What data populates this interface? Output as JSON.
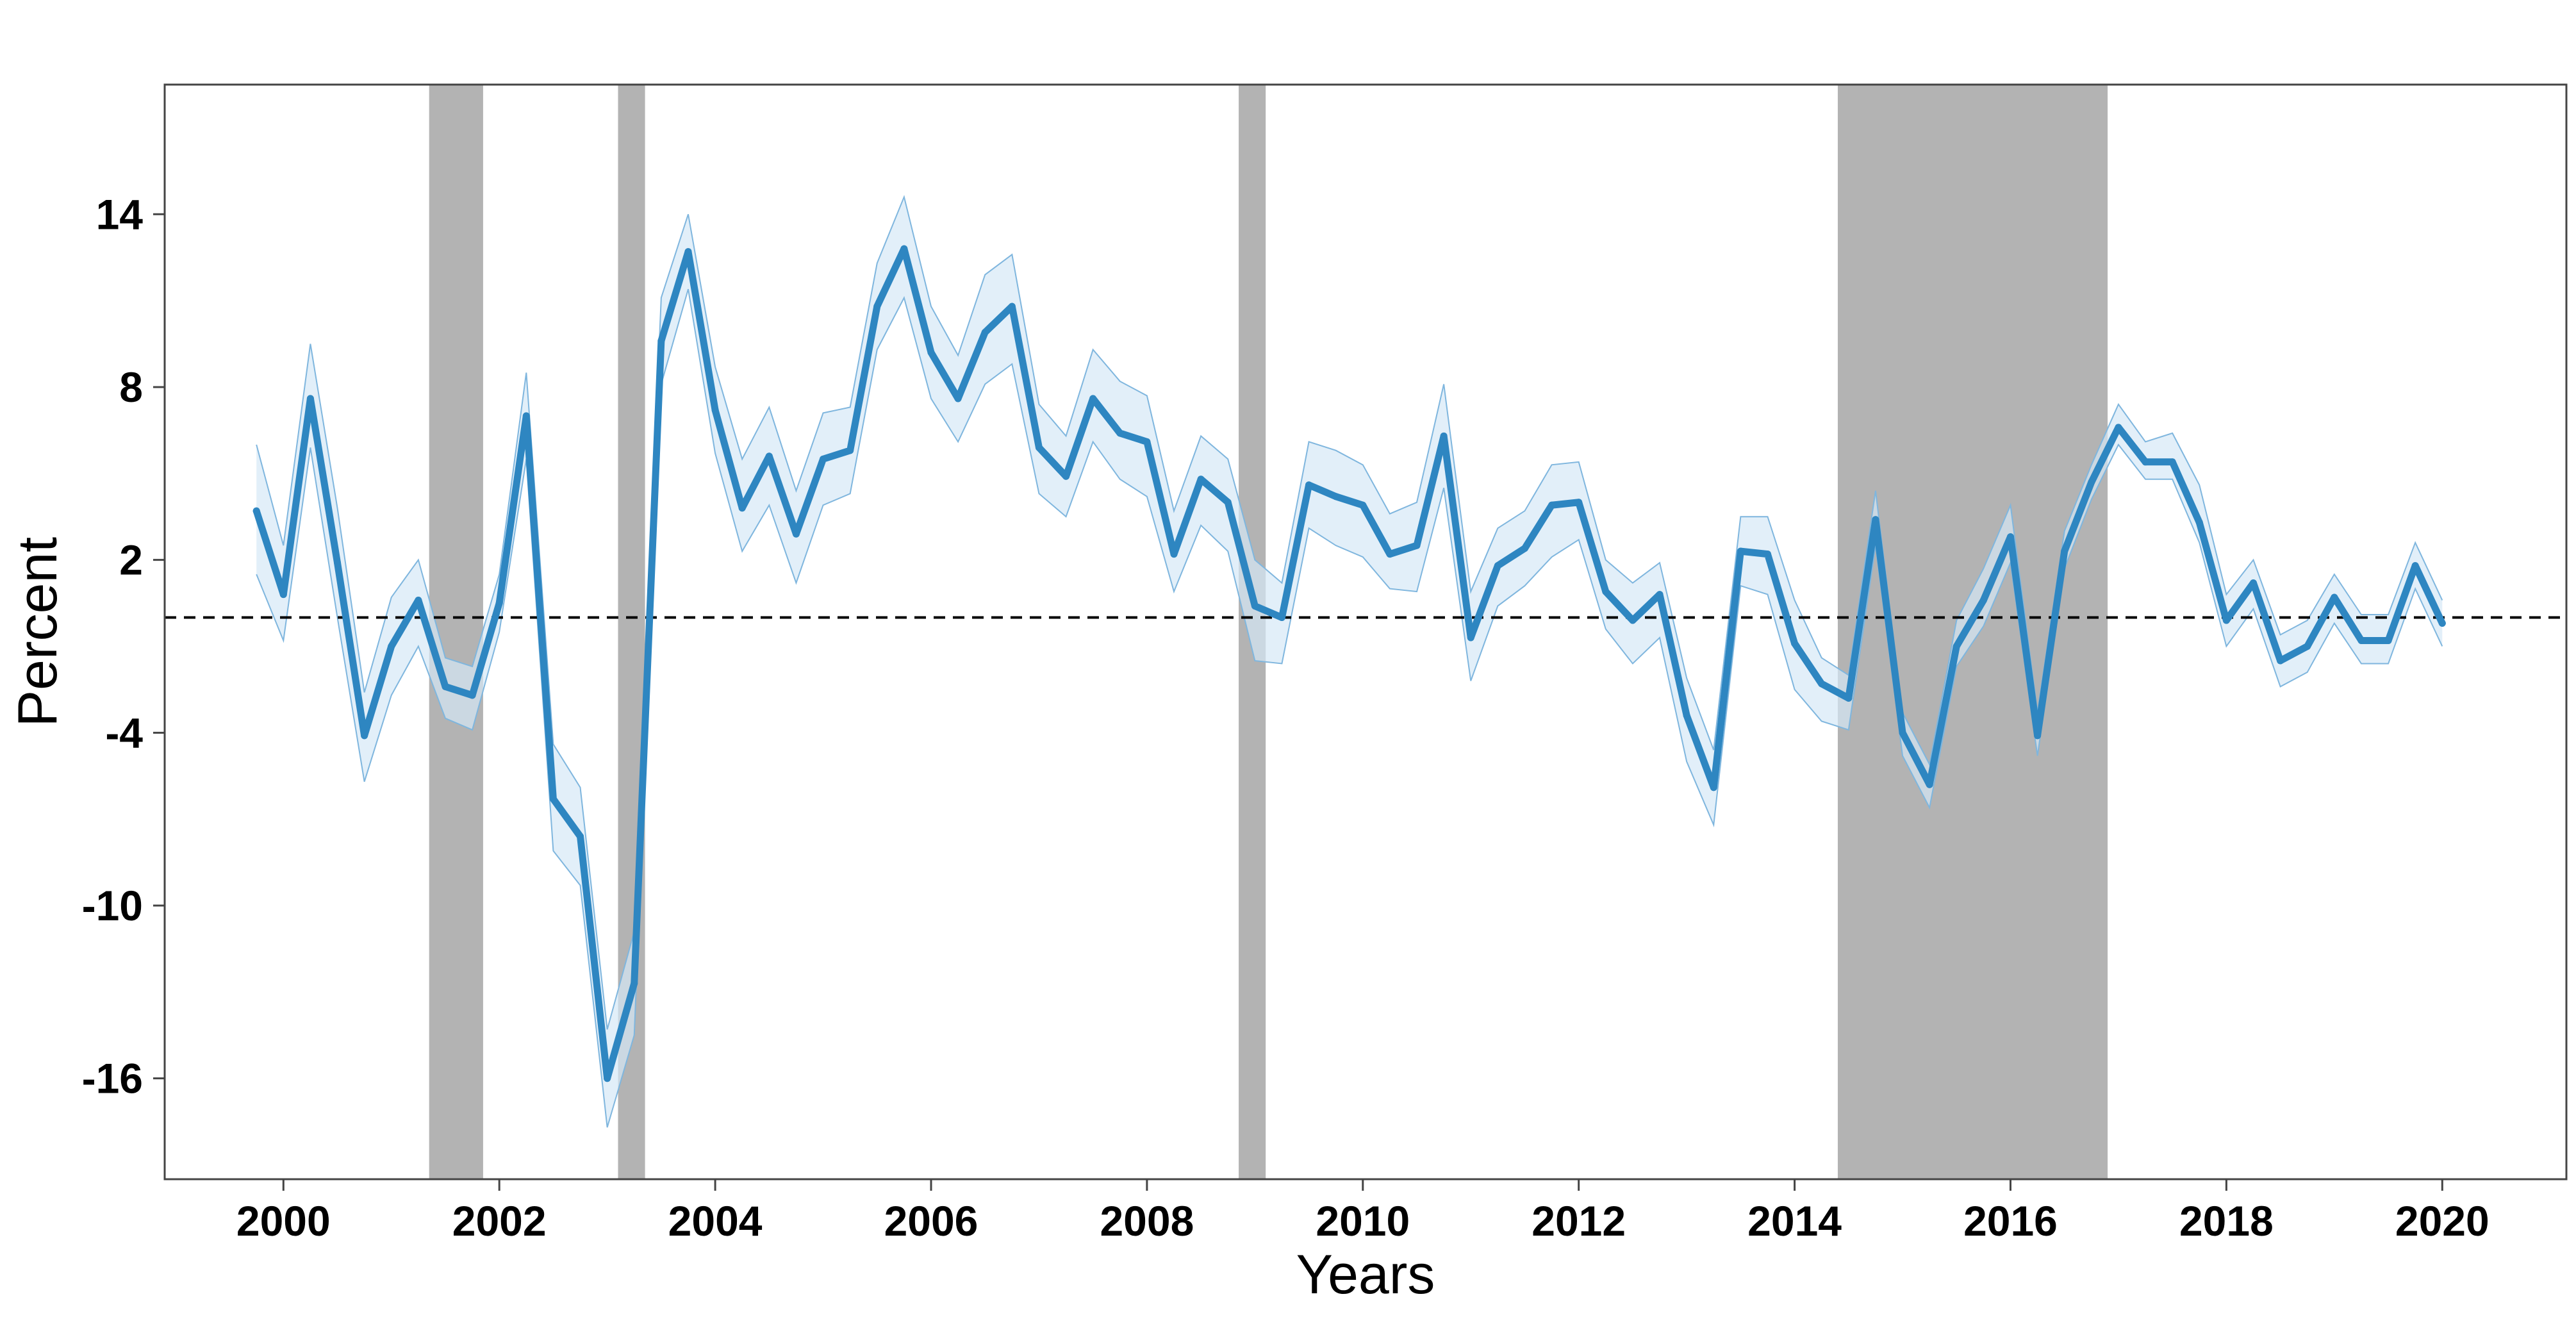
{
  "chart_data": {
    "type": "line",
    "xlabel": "Years",
    "ylabel": "Percent",
    "xlim": [
      1998.9,
      2021.15
    ],
    "ylim": [
      -19.5,
      18.5
    ],
    "x_ticks": [
      2000,
      2002,
      2004,
      2006,
      2008,
      2010,
      2012,
      2014,
      2016,
      2018,
      2020
    ],
    "y_ticks": [
      -16,
      -10,
      -4,
      2,
      8,
      14
    ],
    "reference_line": 0,
    "grid": false,
    "legend": "none",
    "colors": {
      "line": "#2e86c1",
      "band_fill": "#d6e8f6",
      "band_edge": "#7fb6de",
      "shade": "#b3b3b3",
      "refline": "#000000"
    },
    "shaded_periods": [
      [
        2001.35,
        2001.85
      ],
      [
        2003.1,
        2003.35
      ],
      [
        2008.85,
        2009.1
      ],
      [
        2014.4,
        2016.9
      ]
    ],
    "series": [
      {
        "x": [
          1999.75,
          2000.0,
          2000.25,
          2000.5,
          2000.75,
          2001.0,
          2001.25,
          2001.5,
          2001.75,
          2002.0,
          2002.25,
          2002.5,
          2002.75,
          2003.0,
          2003.25,
          2003.5,
          2003.75,
          2004.0,
          2004.25,
          2004.5,
          2004.75,
          2005.0,
          2005.25,
          2005.5,
          2005.75,
          2006.0,
          2006.25,
          2006.5,
          2006.75,
          2007.0,
          2007.25,
          2007.5,
          2007.75,
          2008.0,
          2008.25,
          2008.5,
          2008.75,
          2009.0,
          2009.25,
          2009.5,
          2009.75,
          2010.0,
          2010.25,
          2010.5,
          2010.75,
          2011.0,
          2011.25,
          2011.5,
          2011.75,
          2012.0,
          2012.25,
          2012.5,
          2012.75,
          2013.0,
          2013.25,
          2013.5,
          2013.75,
          2014.0,
          2014.25,
          2014.5,
          2014.75,
          2015.0,
          2015.25,
          2015.5,
          2015.75,
          2016.0,
          2016.25,
          2016.5,
          2016.75,
          2017.0,
          2017.25,
          2017.5,
          2017.75,
          2018.0,
          2018.25,
          2018.5,
          2018.75,
          2019.0,
          2019.25,
          2019.5,
          2019.75,
          2020.0
        ],
        "values": [
          3.7,
          0.8,
          7.6,
          1.9,
          -4.1,
          -1.0,
          0.6,
          -2.4,
          -2.7,
          0.5,
          7.0,
          -6.3,
          -7.6,
          -16.0,
          -12.7,
          9.6,
          12.7,
          7.2,
          3.8,
          5.6,
          2.9,
          5.5,
          5.8,
          10.8,
          12.8,
          9.2,
          7.6,
          9.9,
          10.8,
          5.9,
          4.9,
          7.6,
          6.4,
          6.1,
          2.2,
          4.8,
          4.0,
          0.4,
          0.0,
          4.6,
          4.2,
          3.9,
          2.2,
          2.5,
          6.3,
          -0.7,
          1.8,
          2.4,
          3.9,
          4.0,
          0.9,
          -0.1,
          0.8,
          -3.4,
          -5.9,
          2.3,
          2.2,
          -0.9,
          -2.3,
          -2.8,
          3.4,
          -4.0,
          -5.8,
          -1.0,
          0.6,
          2.8,
          -4.1,
          2.3,
          4.7,
          6.6,
          5.4,
          5.4,
          3.3,
          -0.1,
          1.2,
          -1.5,
          -1.0,
          0.7,
          -0.8,
          -0.8,
          1.8,
          -0.2
        ],
        "lower": [
          1.5,
          -0.8,
          5.9,
          0.0,
          -5.7,
          -2.7,
          -1.0,
          -3.5,
          -3.9,
          -0.5,
          5.5,
          -8.1,
          -9.3,
          -17.7,
          -14.5,
          8.1,
          11.4,
          5.7,
          2.3,
          3.9,
          1.2,
          3.9,
          4.3,
          9.3,
          11.1,
          7.6,
          6.1,
          8.1,
          8.8,
          4.3,
          3.5,
          6.1,
          4.8,
          4.2,
          0.9,
          3.2,
          2.3,
          -1.5,
          -1.6,
          3.1,
          2.5,
          2.1,
          1.0,
          0.9,
          4.5,
          -2.2,
          0.4,
          1.1,
          2.1,
          2.7,
          -0.4,
          -1.6,
          -0.7,
          -5.0,
          -7.2,
          1.1,
          0.8,
          -2.5,
          -3.6,
          -3.9,
          2.5,
          -4.8,
          -6.6,
          -1.7,
          -0.3,
          1.9,
          -4.8,
          1.7,
          4.1,
          6.0,
          4.8,
          4.8,
          2.6,
          -1.0,
          0.3,
          -2.4,
          -1.9,
          -0.2,
          -1.6,
          -1.6,
          1.0,
          -1.0
        ],
        "upper": [
          6.0,
          2.5,
          9.5,
          3.8,
          -2.6,
          0.7,
          2.0,
          -1.4,
          -1.7,
          1.5,
          8.5,
          -4.4,
          -5.9,
          -14.3,
          -10.9,
          11.1,
          14.0,
          8.7,
          5.5,
          7.3,
          4.4,
          7.1,
          7.3,
          12.3,
          14.6,
          10.8,
          9.1,
          11.9,
          12.6,
          7.4,
          6.3,
          9.3,
          8.2,
          7.7,
          3.7,
          6.3,
          5.5,
          2.0,
          1.2,
          6.1,
          5.8,
          5.3,
          3.6,
          4.0,
          8.1,
          0.9,
          3.1,
          3.7,
          5.3,
          5.4,
          2.0,
          1.2,
          1.9,
          -2.1,
          -4.6,
          3.5,
          3.5,
          0.6,
          -1.4,
          -2.0,
          4.4,
          -3.3,
          -5.1,
          -0.1,
          1.7,
          3.9,
          -3.3,
          3.0,
          5.3,
          7.4,
          6.1,
          6.4,
          4.6,
          0.8,
          2.0,
          -0.6,
          -0.1,
          1.5,
          0.1,
          0.1,
          2.6,
          0.6
        ]
      }
    ]
  }
}
